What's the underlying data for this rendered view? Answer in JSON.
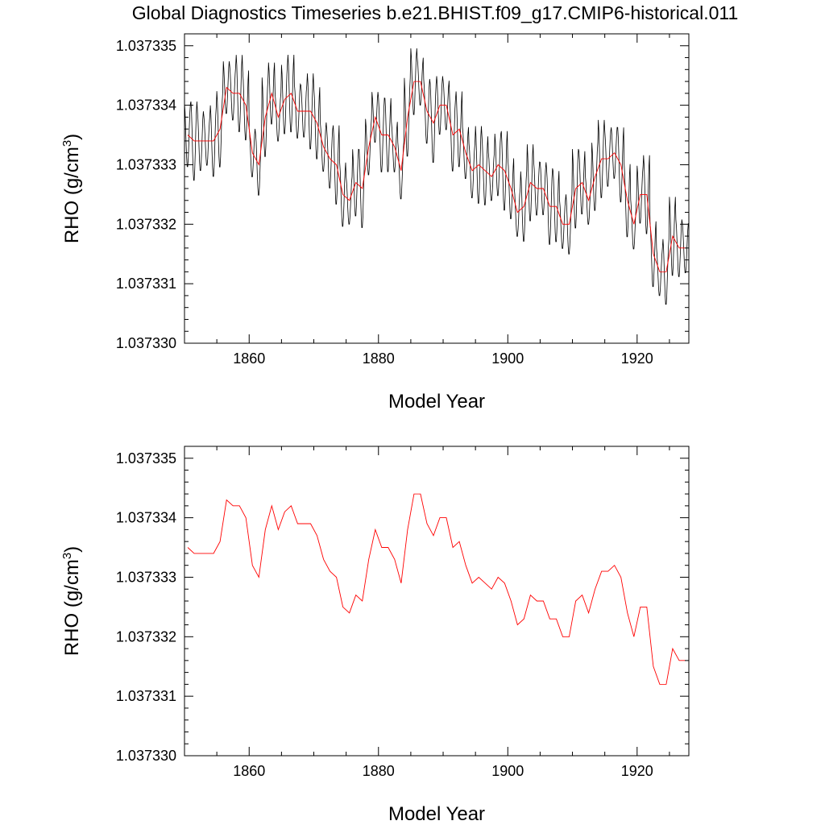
{
  "title": "Global Diagnostics Timeseries b.e21.BHIST.f09_g17.CMIP6-historical.011",
  "colors": {
    "monthly": "#000000",
    "annual": "#ff0000",
    "axes": "#000000"
  },
  "chart_data": [
    {
      "type": "line",
      "xlabel": "Model Year",
      "ylabel": "RHO (g/cm3)",
      "xlim": [
        1850,
        1928
      ],
      "ylim": [
        1.03733,
        1.0373352
      ],
      "xticks": [
        1860,
        1880,
        1900,
        1920
      ],
      "yticks": [
        1.03733,
        1.037331,
        1.037332,
        1.037333,
        1.037334,
        1.037335
      ],
      "ytick_labels": [
        "1.037330",
        "1.037331",
        "1.037332",
        "1.037333",
        "1.037334",
        "1.037335"
      ],
      "series": [
        {
          "kind": "monthly_seasonal",
          "amplitude": 5.5e-07,
          "x": [
            1850,
            1851,
            1852,
            1853,
            1854,
            1855,
            1856,
            1857,
            1858,
            1859,
            1860,
            1861,
            1862,
            1863,
            1864,
            1865,
            1866,
            1867,
            1868,
            1869,
            1870,
            1871,
            1872,
            1873,
            1874,
            1875,
            1876,
            1877,
            1878,
            1879,
            1880,
            1881,
            1882,
            1883,
            1884,
            1885,
            1886,
            1887,
            1888,
            1889,
            1890,
            1891,
            1892,
            1893,
            1894,
            1895,
            1896,
            1897,
            1898,
            1899,
            1900,
            1901,
            1902,
            1903,
            1904,
            1905,
            1906,
            1907,
            1908,
            1909,
            1910,
            1911,
            1912,
            1913,
            1914,
            1915,
            1916,
            1917,
            1918,
            1919,
            1920,
            1921,
            1922,
            1923,
            1924,
            1925,
            1926,
            1927
          ],
          "values": [
            1.0373335,
            1.0373334,
            1.0373334,
            1.0373334,
            1.0373334,
            1.0373336,
            1.0373343,
            1.0373342,
            1.0373342,
            1.037334,
            1.0373332,
            1.037333,
            1.0373338,
            1.0373342,
            1.0373338,
            1.0373341,
            1.0373342,
            1.0373339,
            1.0373339,
            1.0373339,
            1.0373337,
            1.0373333,
            1.0373331,
            1.037333,
            1.0373325,
            1.0373324,
            1.0373327,
            1.0373326,
            1.0373333,
            1.0373338,
            1.0373335,
            1.0373335,
            1.0373333,
            1.0373329,
            1.0373338,
            1.0373344,
            1.0373344,
            1.0373339,
            1.0373337,
            1.037334,
            1.037334,
            1.0373335,
            1.0373336,
            1.0373332,
            1.0373329,
            1.037333,
            1.0373329,
            1.0373328,
            1.037333,
            1.0373329,
            1.0373326,
            1.0373322,
            1.0373323,
            1.0373327,
            1.0373326,
            1.0373326,
            1.0373323,
            1.0373323,
            1.037332,
            1.037332,
            1.0373326,
            1.0373327,
            1.0373324,
            1.0373328,
            1.0373331,
            1.0373331,
            1.0373332,
            1.037333,
            1.0373324,
            1.037332,
            1.0373325,
            1.0373325,
            1.0373315,
            1.0373312,
            1.0373312,
            1.0373318,
            1.0373316,
            1.0373316
          ]
        },
        {
          "kind": "annual_mean",
          "x": [
            1850,
            1851,
            1852,
            1853,
            1854,
            1855,
            1856,
            1857,
            1858,
            1859,
            1860,
            1861,
            1862,
            1863,
            1864,
            1865,
            1866,
            1867,
            1868,
            1869,
            1870,
            1871,
            1872,
            1873,
            1874,
            1875,
            1876,
            1877,
            1878,
            1879,
            1880,
            1881,
            1882,
            1883,
            1884,
            1885,
            1886,
            1887,
            1888,
            1889,
            1890,
            1891,
            1892,
            1893,
            1894,
            1895,
            1896,
            1897,
            1898,
            1899,
            1900,
            1901,
            1902,
            1903,
            1904,
            1905,
            1906,
            1907,
            1908,
            1909,
            1910,
            1911,
            1912,
            1913,
            1914,
            1915,
            1916,
            1917,
            1918,
            1919,
            1920,
            1921,
            1922,
            1923,
            1924,
            1925,
            1926,
            1927
          ],
          "values": [
            1.0373335,
            1.0373334,
            1.0373334,
            1.0373334,
            1.0373334,
            1.0373336,
            1.0373343,
            1.0373342,
            1.0373342,
            1.037334,
            1.0373332,
            1.037333,
            1.0373338,
            1.0373342,
            1.0373338,
            1.0373341,
            1.0373342,
            1.0373339,
            1.0373339,
            1.0373339,
            1.0373337,
            1.0373333,
            1.0373331,
            1.037333,
            1.0373325,
            1.0373324,
            1.0373327,
            1.0373326,
            1.0373333,
            1.0373338,
            1.0373335,
            1.0373335,
            1.0373333,
            1.0373329,
            1.0373338,
            1.0373344,
            1.0373344,
            1.0373339,
            1.0373337,
            1.037334,
            1.037334,
            1.0373335,
            1.0373336,
            1.0373332,
            1.0373329,
            1.037333,
            1.0373329,
            1.0373328,
            1.037333,
            1.0373329,
            1.0373326,
            1.0373322,
            1.0373323,
            1.0373327,
            1.0373326,
            1.0373326,
            1.0373323,
            1.0373323,
            1.037332,
            1.037332,
            1.0373326,
            1.0373327,
            1.0373324,
            1.0373328,
            1.0373331,
            1.0373331,
            1.0373332,
            1.037333,
            1.0373324,
            1.037332,
            1.0373325,
            1.0373325,
            1.0373315,
            1.0373312,
            1.0373312,
            1.0373318,
            1.0373316,
            1.0373316
          ]
        }
      ]
    },
    {
      "type": "line",
      "xlabel": "Model Year",
      "ylabel": "RHO (g/cm3)",
      "xlim": [
        1850,
        1928
      ],
      "ylim": [
        1.03733,
        1.0373352
      ],
      "xticks": [
        1860,
        1880,
        1900,
        1920
      ],
      "yticks": [
        1.03733,
        1.037331,
        1.037332,
        1.037333,
        1.037334,
        1.037335
      ],
      "ytick_labels": [
        "1.037330",
        "1.037331",
        "1.037332",
        "1.037333",
        "1.037334",
        "1.037335"
      ],
      "series": [
        {
          "kind": "annual_mean",
          "x": [
            1850,
            1851,
            1852,
            1853,
            1854,
            1855,
            1856,
            1857,
            1858,
            1859,
            1860,
            1861,
            1862,
            1863,
            1864,
            1865,
            1866,
            1867,
            1868,
            1869,
            1870,
            1871,
            1872,
            1873,
            1874,
            1875,
            1876,
            1877,
            1878,
            1879,
            1880,
            1881,
            1882,
            1883,
            1884,
            1885,
            1886,
            1887,
            1888,
            1889,
            1890,
            1891,
            1892,
            1893,
            1894,
            1895,
            1896,
            1897,
            1898,
            1899,
            1900,
            1901,
            1902,
            1903,
            1904,
            1905,
            1906,
            1907,
            1908,
            1909,
            1910,
            1911,
            1912,
            1913,
            1914,
            1915,
            1916,
            1917,
            1918,
            1919,
            1920,
            1921,
            1922,
            1923,
            1924,
            1925,
            1926,
            1927
          ],
          "values": [
            1.0373335,
            1.0373334,
            1.0373334,
            1.0373334,
            1.0373334,
            1.0373336,
            1.0373343,
            1.0373342,
            1.0373342,
            1.037334,
            1.0373332,
            1.037333,
            1.0373338,
            1.0373342,
            1.0373338,
            1.0373341,
            1.0373342,
            1.0373339,
            1.0373339,
            1.0373339,
            1.0373337,
            1.0373333,
            1.0373331,
            1.037333,
            1.0373325,
            1.0373324,
            1.0373327,
            1.0373326,
            1.0373333,
            1.0373338,
            1.0373335,
            1.0373335,
            1.0373333,
            1.0373329,
            1.0373338,
            1.0373344,
            1.0373344,
            1.0373339,
            1.0373337,
            1.037334,
            1.037334,
            1.0373335,
            1.0373336,
            1.0373332,
            1.0373329,
            1.037333,
            1.0373329,
            1.0373328,
            1.037333,
            1.0373329,
            1.0373326,
            1.0373322,
            1.0373323,
            1.0373327,
            1.0373326,
            1.0373326,
            1.0373323,
            1.0373323,
            1.037332,
            1.037332,
            1.0373326,
            1.0373327,
            1.0373324,
            1.0373328,
            1.0373331,
            1.0373331,
            1.0373332,
            1.037333,
            1.0373324,
            1.037332,
            1.0373325,
            1.0373325,
            1.0373315,
            1.0373312,
            1.0373312,
            1.0373318,
            1.0373316,
            1.0373316
          ]
        }
      ]
    }
  ]
}
